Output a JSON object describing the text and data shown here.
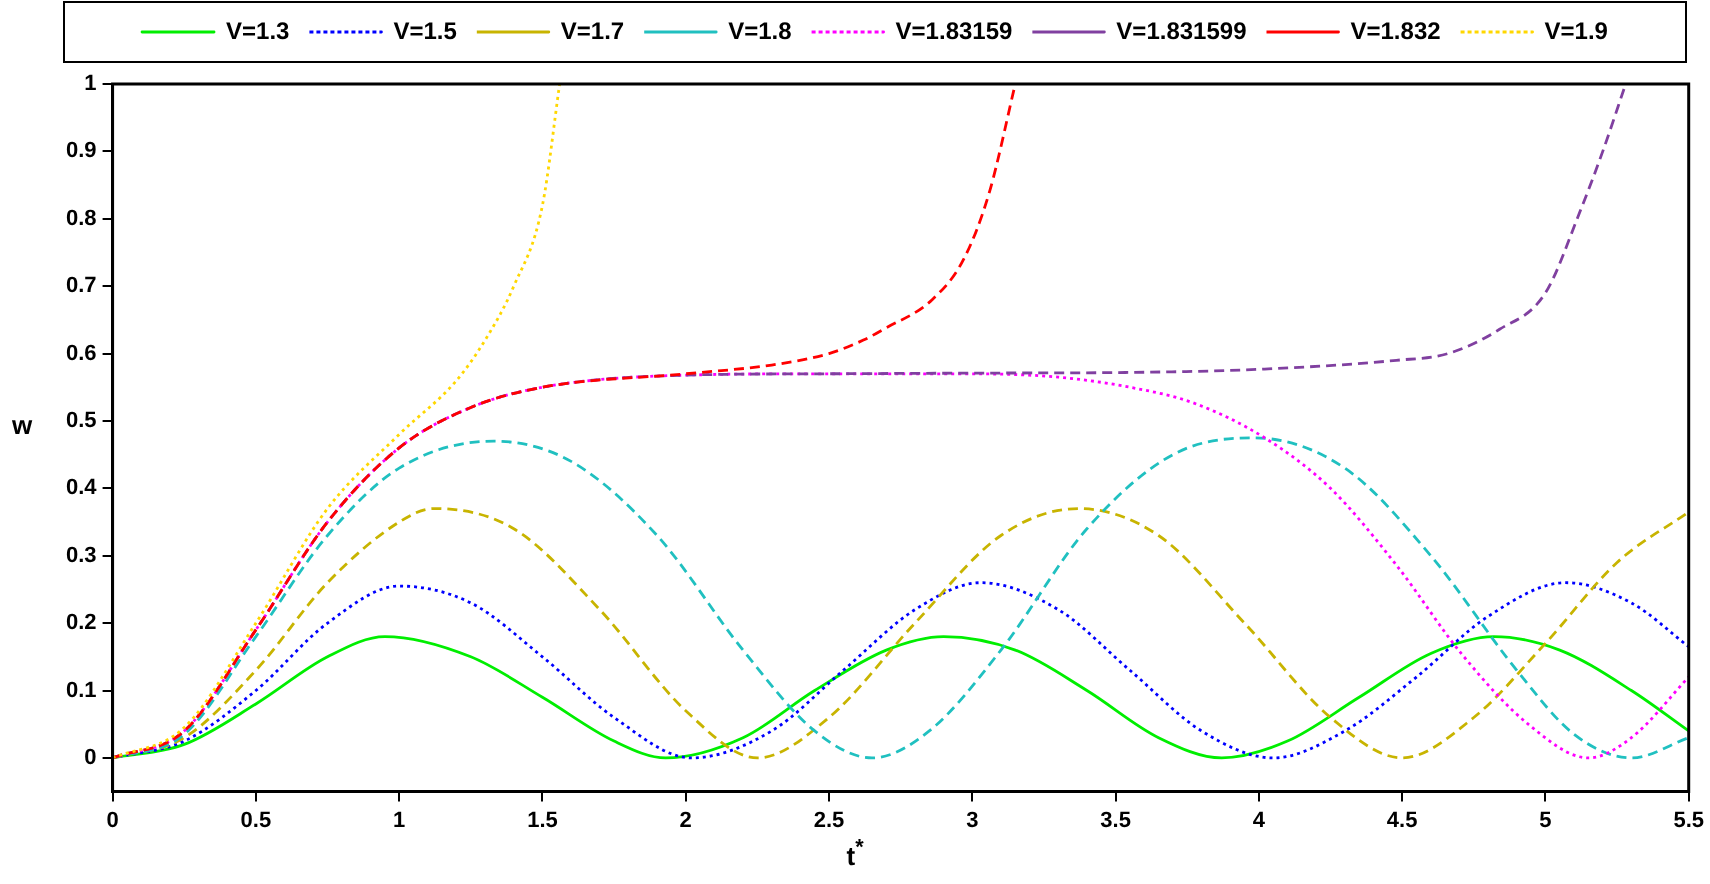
{
  "chart_data": {
    "type": "line",
    "xlabel": "t$^{*}$",
    "ylabel": "w",
    "xlim": [
      0,
      5.5
    ],
    "ylim": [
      -0.05,
      1
    ],
    "xticks": [
      0,
      0.5,
      1,
      1.5,
      2,
      2.5,
      3,
      3.5,
      4,
      4.5,
      5,
      5.5
    ],
    "yticks": [
      0,
      0.1,
      0.2,
      0.3,
      0.4,
      0.5,
      0.6,
      0.7,
      0.8,
      0.9,
      1
    ],
    "grid": false,
    "legend": "top",
    "marker": "none",
    "series": [
      {
        "name": "V=1.3",
        "color": "#00ee00",
        "line_style": "solid",
        "x": [
          0,
          0.25,
          0.5,
          0.75,
          0.95,
          1.25,
          1.5,
          1.75,
          1.93,
          2.2,
          2.45,
          2.7,
          2.9,
          3.15,
          3.4,
          3.65,
          3.87,
          4.1,
          4.35,
          4.6,
          4.82,
          5.05,
          5.3,
          5.5
        ],
        "values": [
          0,
          0.02,
          0.08,
          0.15,
          0.18,
          0.15,
          0.09,
          0.025,
          0,
          0.03,
          0.1,
          0.16,
          0.18,
          0.16,
          0.1,
          0.03,
          0,
          0.025,
          0.09,
          0.155,
          0.18,
          0.16,
          0.1,
          0.04
        ]
      },
      {
        "name": "V=1.5",
        "color": "#0000ff",
        "line_style": "dotted",
        "x": [
          0,
          0.25,
          0.5,
          0.75,
          1.0,
          1.25,
          1.5,
          1.75,
          2.02,
          2.3,
          2.55,
          2.8,
          3.03,
          3.3,
          3.55,
          3.8,
          4.05,
          4.3,
          4.55,
          4.8,
          5.07,
          5.3,
          5.5
        ],
        "values": [
          0,
          0.025,
          0.1,
          0.2,
          0.255,
          0.23,
          0.15,
          0.06,
          0,
          0.04,
          0.13,
          0.22,
          0.26,
          0.22,
          0.13,
          0.04,
          0,
          0.04,
          0.12,
          0.21,
          0.26,
          0.23,
          0.165
        ]
      },
      {
        "name": "V=1.7",
        "color": "#c8b400",
        "line_style": "dashed",
        "x": [
          0,
          0.25,
          0.5,
          0.75,
          1.0,
          1.12,
          1.4,
          1.7,
          2.0,
          2.25,
          2.5,
          2.8,
          3.1,
          3.37,
          3.65,
          3.95,
          4.25,
          4.5,
          4.75,
          5.0,
          5.25,
          5.5
        ],
        "values": [
          0,
          0.03,
          0.13,
          0.26,
          0.35,
          0.37,
          0.34,
          0.22,
          0.07,
          0,
          0.06,
          0.2,
          0.33,
          0.37,
          0.33,
          0.2,
          0.06,
          0,
          0.06,
          0.17,
          0.29,
          0.365
        ]
      },
      {
        "name": "V=1.8",
        "color": "#20c0c0",
        "line_style": "dashed",
        "x": [
          0,
          0.25,
          0.5,
          0.75,
          1.0,
          1.33,
          1.6,
          1.9,
          2.2,
          2.45,
          2.65,
          2.85,
          3.1,
          3.4,
          3.7,
          3.98,
          4.3,
          4.6,
          4.9,
          5.1,
          5.3,
          5.5
        ],
        "values": [
          0,
          0.035,
          0.18,
          0.33,
          0.43,
          0.47,
          0.44,
          0.33,
          0.16,
          0.04,
          0,
          0.04,
          0.16,
          0.34,
          0.45,
          0.475,
          0.43,
          0.3,
          0.13,
          0.035,
          0,
          0.03
        ]
      },
      {
        "name": "V=1.83159",
        "color": "#ff00ff",
        "line_style": "dotted",
        "x": [
          0,
          0.25,
          0.5,
          0.75,
          1.0,
          1.25,
          1.5,
          2.0,
          2.5,
          2.98,
          3.3,
          3.55,
          3.77,
          4.02,
          4.25,
          4.48,
          4.71,
          4.94,
          5.15,
          5.3,
          5.5
        ],
        "values": [
          0,
          0.04,
          0.19,
          0.35,
          0.46,
          0.52,
          0.55,
          0.568,
          0.57,
          0.57,
          0.565,
          0.55,
          0.527,
          0.475,
          0.4,
          0.286,
          0.153,
          0.05,
          0,
          0.03,
          0.12
        ]
      },
      {
        "name": "V=1.831599",
        "color": "#8040a0",
        "line_style": "dashed",
        "x": [
          0,
          0.25,
          0.5,
          0.75,
          1.0,
          1.25,
          1.5,
          2.0,
          2.5,
          3.0,
          3.55,
          4.02,
          4.48,
          4.66,
          4.84,
          5.0,
          5.12,
          5.2,
          5.28
        ],
        "values": [
          0,
          0.04,
          0.19,
          0.35,
          0.46,
          0.52,
          0.55,
          0.568,
          0.57,
          0.571,
          0.572,
          0.577,
          0.59,
          0.6,
          0.636,
          0.69,
          0.81,
          0.9,
          1
        ]
      },
      {
        "name": "V=1.832",
        "color": "#ff0000",
        "line_style": "dashed",
        "x": [
          0,
          0.25,
          0.5,
          0.75,
          1.0,
          1.25,
          1.5,
          2.0,
          2.3,
          2.5,
          2.62,
          2.69,
          2.86,
          2.97,
          3.06,
          3.15
        ],
        "values": [
          0,
          0.04,
          0.19,
          0.35,
          0.46,
          0.52,
          0.55,
          0.57,
          0.583,
          0.6,
          0.62,
          0.636,
          0.68,
          0.74,
          0.84,
          1
        ]
      },
      {
        "name": "V=1.9",
        "color": "#ffd700",
        "line_style": "dotted",
        "x": [
          0,
          0.25,
          0.5,
          0.75,
          1.0,
          1.2,
          1.3,
          1.4,
          1.5,
          1.56
        ],
        "values": [
          0,
          0.045,
          0.2,
          0.37,
          0.48,
          0.56,
          0.62,
          0.7,
          0.82,
          1
        ]
      }
    ]
  }
}
